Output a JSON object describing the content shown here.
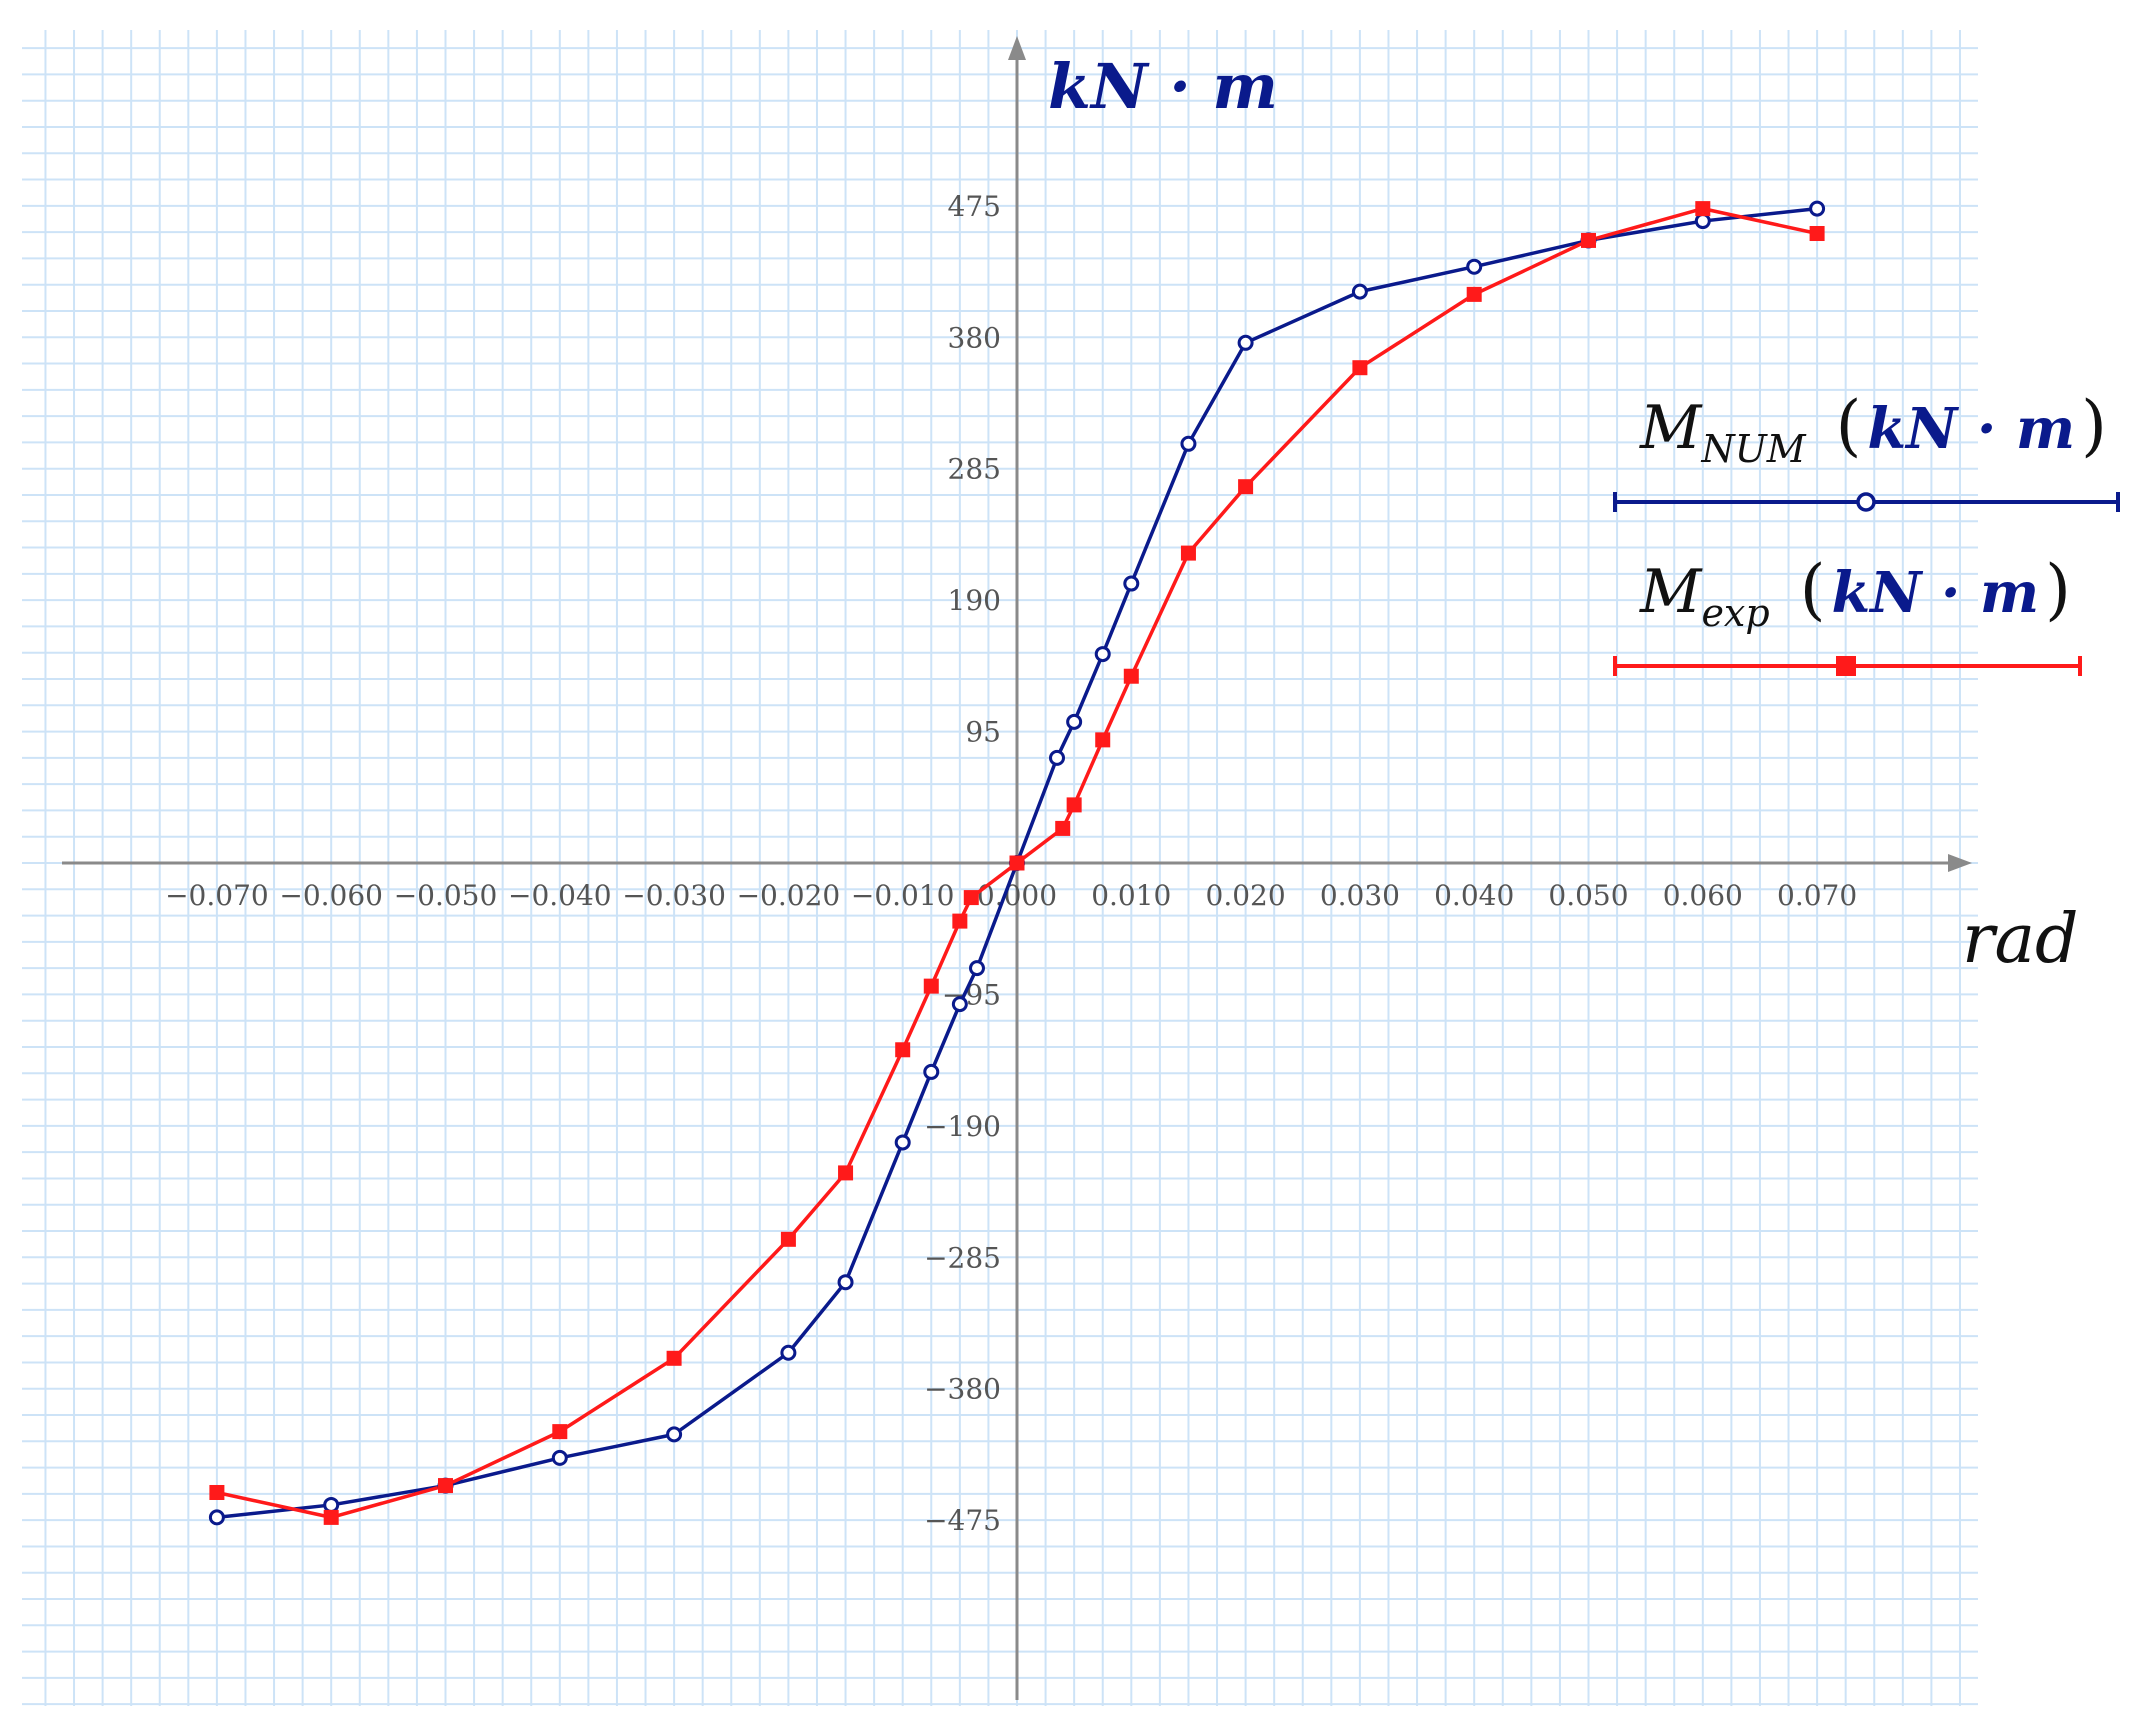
{
  "chart_data": {
    "type": "line",
    "ylabel": "kN · m",
    "xlabel": "rad",
    "xlim": [
      -0.085,
      0.083
    ],
    "ylim": [
      -570,
      570
    ],
    "grid": true,
    "legend_position": "right",
    "x_ticks": [
      "−0.070",
      "−0.060",
      "−0.050",
      "−0.040",
      "−0.030",
      "−0.020",
      "−0.010",
      "0.000",
      "0.010",
      "0.020",
      "0.030",
      "0.040",
      "0.050",
      "0.060",
      "0.070"
    ],
    "x_tick_values": [
      -0.07,
      -0.06,
      -0.05,
      -0.04,
      -0.03,
      -0.02,
      -0.01,
      0.0,
      0.01,
      0.02,
      0.03,
      0.04,
      0.05,
      0.06,
      0.07
    ],
    "y_ticks": [
      "475",
      "380",
      "285",
      "190",
      "95",
      "−95",
      "−190",
      "−285",
      "−380",
      "−475"
    ],
    "y_tick_values": [
      475,
      380,
      285,
      190,
      95,
      -95,
      -190,
      -285,
      -380,
      -475
    ],
    "series": [
      {
        "name": "M_NUM",
        "legend_main": "M",
        "legend_sub": "NUM",
        "legend_unit": "kN · m",
        "color": "#0a1a8c",
        "marker": "circle",
        "x": [
          -0.07,
          -0.06,
          -0.05,
          -0.04,
          -0.03,
          -0.02,
          -0.015,
          -0.01,
          -0.0075,
          -0.005,
          -0.0035,
          0.0,
          0.0035,
          0.005,
          0.0075,
          0.01,
          0.015,
          0.02,
          0.03,
          0.04,
          0.05,
          0.06,
          0.07
        ],
        "values": [
          -473,
          -464,
          -450,
          -430,
          -413,
          -354,
          -303,
          -202,
          -151,
          -102,
          -76,
          0,
          76,
          102,
          151,
          202,
          303,
          376,
          413,
          431,
          450,
          464,
          473
        ]
      },
      {
        "name": "M_exp",
        "legend_main": "M",
        "legend_sub": "exp",
        "legend_unit": "kN · m",
        "color": "#ff1a1a",
        "marker": "square",
        "x": [
          -0.07,
          -0.06,
          -0.05,
          -0.04,
          -0.03,
          -0.02,
          -0.015,
          -0.01,
          -0.0075,
          -0.005,
          -0.004,
          0.0,
          0.004,
          0.005,
          0.0075,
          0.01,
          0.015,
          0.02,
          0.03,
          0.04,
          0.05,
          0.06,
          0.07
        ],
        "values": [
          -455,
          -473,
          -450,
          -411,
          -358,
          -272,
          -224,
          -135,
          -89,
          -42,
          -25,
          0,
          25,
          42,
          89,
          135,
          224,
          272,
          358,
          411,
          450,
          473,
          455
        ]
      }
    ]
  }
}
